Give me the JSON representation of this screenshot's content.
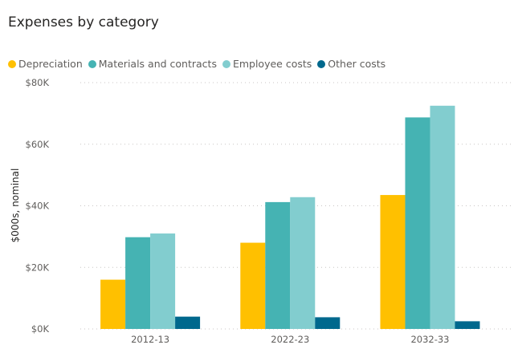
{
  "chart_data": {
    "type": "bar",
    "title": "Expenses by category",
    "xlabel": "",
    "ylabel": "$000s, nominal",
    "categories": [
      "2012-13",
      "2022-23",
      "2032-33"
    ],
    "ylim": [
      0,
      80000
    ],
    "yticks": [
      0,
      20000,
      40000,
      60000,
      80000
    ],
    "ytick_labels": [
      "$0K",
      "$20K",
      "$40K",
      "$60K",
      "$80K"
    ],
    "grid": true,
    "legend_position": "top-left",
    "series": [
      {
        "name": "Depreciation",
        "color": "#FFC000",
        "values": [
          16000,
          28000,
          43500
        ]
      },
      {
        "name": "Materials and contracts",
        "color": "#45B3B3",
        "values": [
          29800,
          41200,
          68700
        ]
      },
      {
        "name": "Employee costs",
        "color": "#82CDCF",
        "values": [
          31000,
          42800,
          72500
        ]
      },
      {
        "name": "Other costs",
        "color": "#00688D",
        "values": [
          4000,
          3800,
          2500
        ]
      }
    ]
  }
}
